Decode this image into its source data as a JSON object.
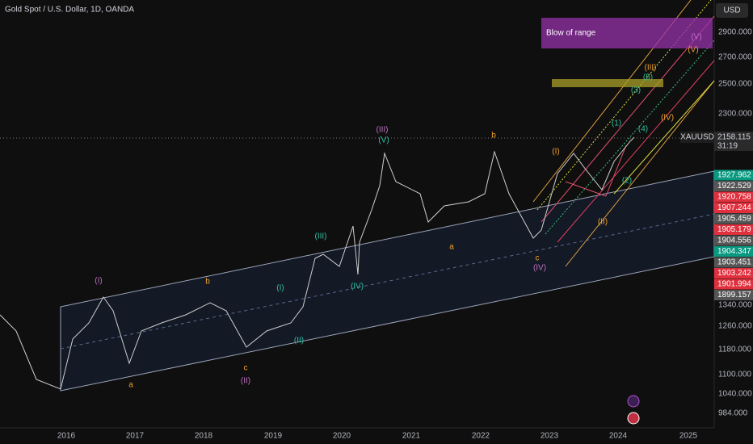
{
  "header": {
    "title": "Gold Spot / U.S. Dollar, 1D, OANDA",
    "currency": "USD"
  },
  "price_axis": [
    "2900.000",
    "2700.000",
    "2500.000",
    "2300.000",
    "1340.000",
    "1260.000",
    "1180.000",
    "1100.000",
    "1040.000",
    "984.000"
  ],
  "time_axis": [
    "2016",
    "2017",
    "2018",
    "2019",
    "2020",
    "2021",
    "2022",
    "2023",
    "2024",
    "2025"
  ],
  "symbol_tag": {
    "symbol": "XAUUSD",
    "price": "2158.115",
    "countdown": "31:19"
  },
  "price_tags": [
    "1927.962",
    "1922.529",
    "1920.758",
    "1907.244",
    "1905.459",
    "1905.179",
    "1904.556",
    "1904.347",
    "1903.451",
    "1903.242",
    "1901.994",
    "1899.157"
  ],
  "annotation": "Blow of range",
  "wave_labels": [
    "(I)",
    "b",
    "a",
    "c",
    "(II)",
    "(I)",
    "(II)",
    "(III)",
    "(IV)",
    "(III)",
    "(V)",
    "a",
    "b",
    "c",
    "(IV)",
    "(I)",
    "(II)",
    "(1)",
    "(2)",
    "(3)",
    "(4)",
    "(5)",
    "(III)",
    "(IV)",
    "(V)",
    "(V)"
  ]
}
